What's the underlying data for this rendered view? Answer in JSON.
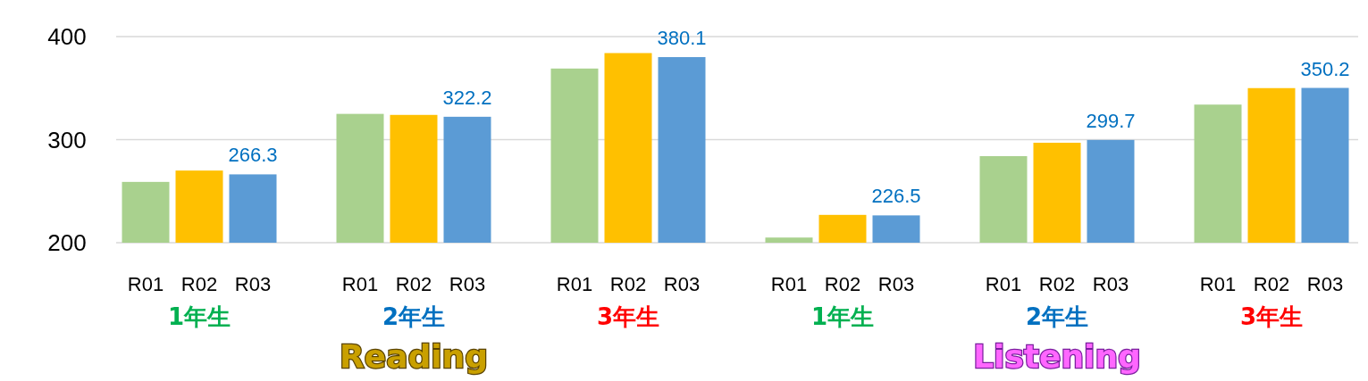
{
  "chart_data": {
    "type": "bar",
    "categories": [
      "1年生",
      "2年生",
      "3年生",
      "1年生",
      "2年生",
      "3年生"
    ],
    "series": [
      {
        "name": "R01",
        "color": "#a9d18e",
        "values": [
          259,
          325,
          369,
          205,
          284,
          334
        ]
      },
      {
        "name": "R02",
        "color": "#ffc000",
        "values": [
          270,
          324,
          384,
          227,
          297,
          350
        ]
      },
      {
        "name": "R03",
        "color": "#5b9bd5",
        "values": [
          266.3,
          322.2,
          380.1,
          226.5,
          299.7,
          350.2
        ],
        "value_labels": [
          "266.3",
          "322.2",
          "380.1",
          "226.5",
          "299.7",
          "350.2"
        ]
      }
    ],
    "ylim": [
      200,
      400
    ],
    "yticks": [
      200,
      300,
      400
    ],
    "grid": "y",
    "annotations": [
      "Reading",
      "Listening"
    ]
  }
}
